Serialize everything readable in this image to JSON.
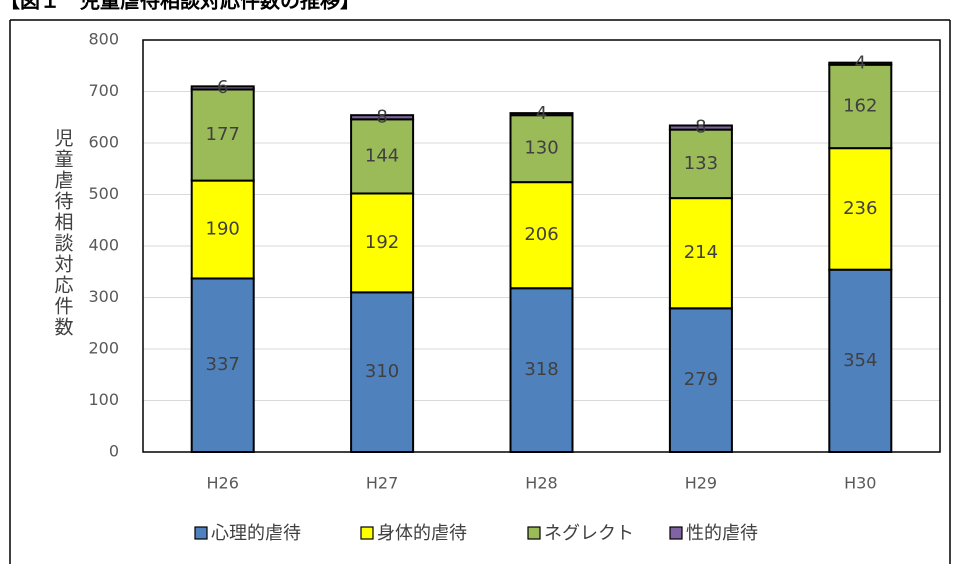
{
  "chart_data": {
    "type": "stacked-bar",
    "title": "【図１　児童虐待相談対応件数の推移】",
    "y_label": "児童虐待相談対応件数",
    "categories": [
      "H26",
      "H27",
      "H28",
      "H29",
      "H30"
    ],
    "series": [
      {
        "name": "心理的虐待",
        "color": "#4f81bd",
        "values": [
          337,
          310,
          318,
          279,
          354
        ]
      },
      {
        "name": "身体的虐待",
        "color": "#ffff00",
        "values": [
          190,
          192,
          206,
          214,
          236
        ]
      },
      {
        "name": "ネグレクト",
        "color": "#9bbb59",
        "values": [
          177,
          144,
          130,
          133,
          162
        ]
      },
      {
        "name": "性的虐待",
        "color": "#8064a2",
        "values": [
          6,
          8,
          4,
          8,
          4
        ]
      }
    ],
    "ylim": [
      0,
      800
    ],
    "yticks": [
      0,
      100,
      200,
      300,
      400,
      500,
      600,
      700,
      800
    ],
    "grid": true,
    "legend": "bottom"
  }
}
